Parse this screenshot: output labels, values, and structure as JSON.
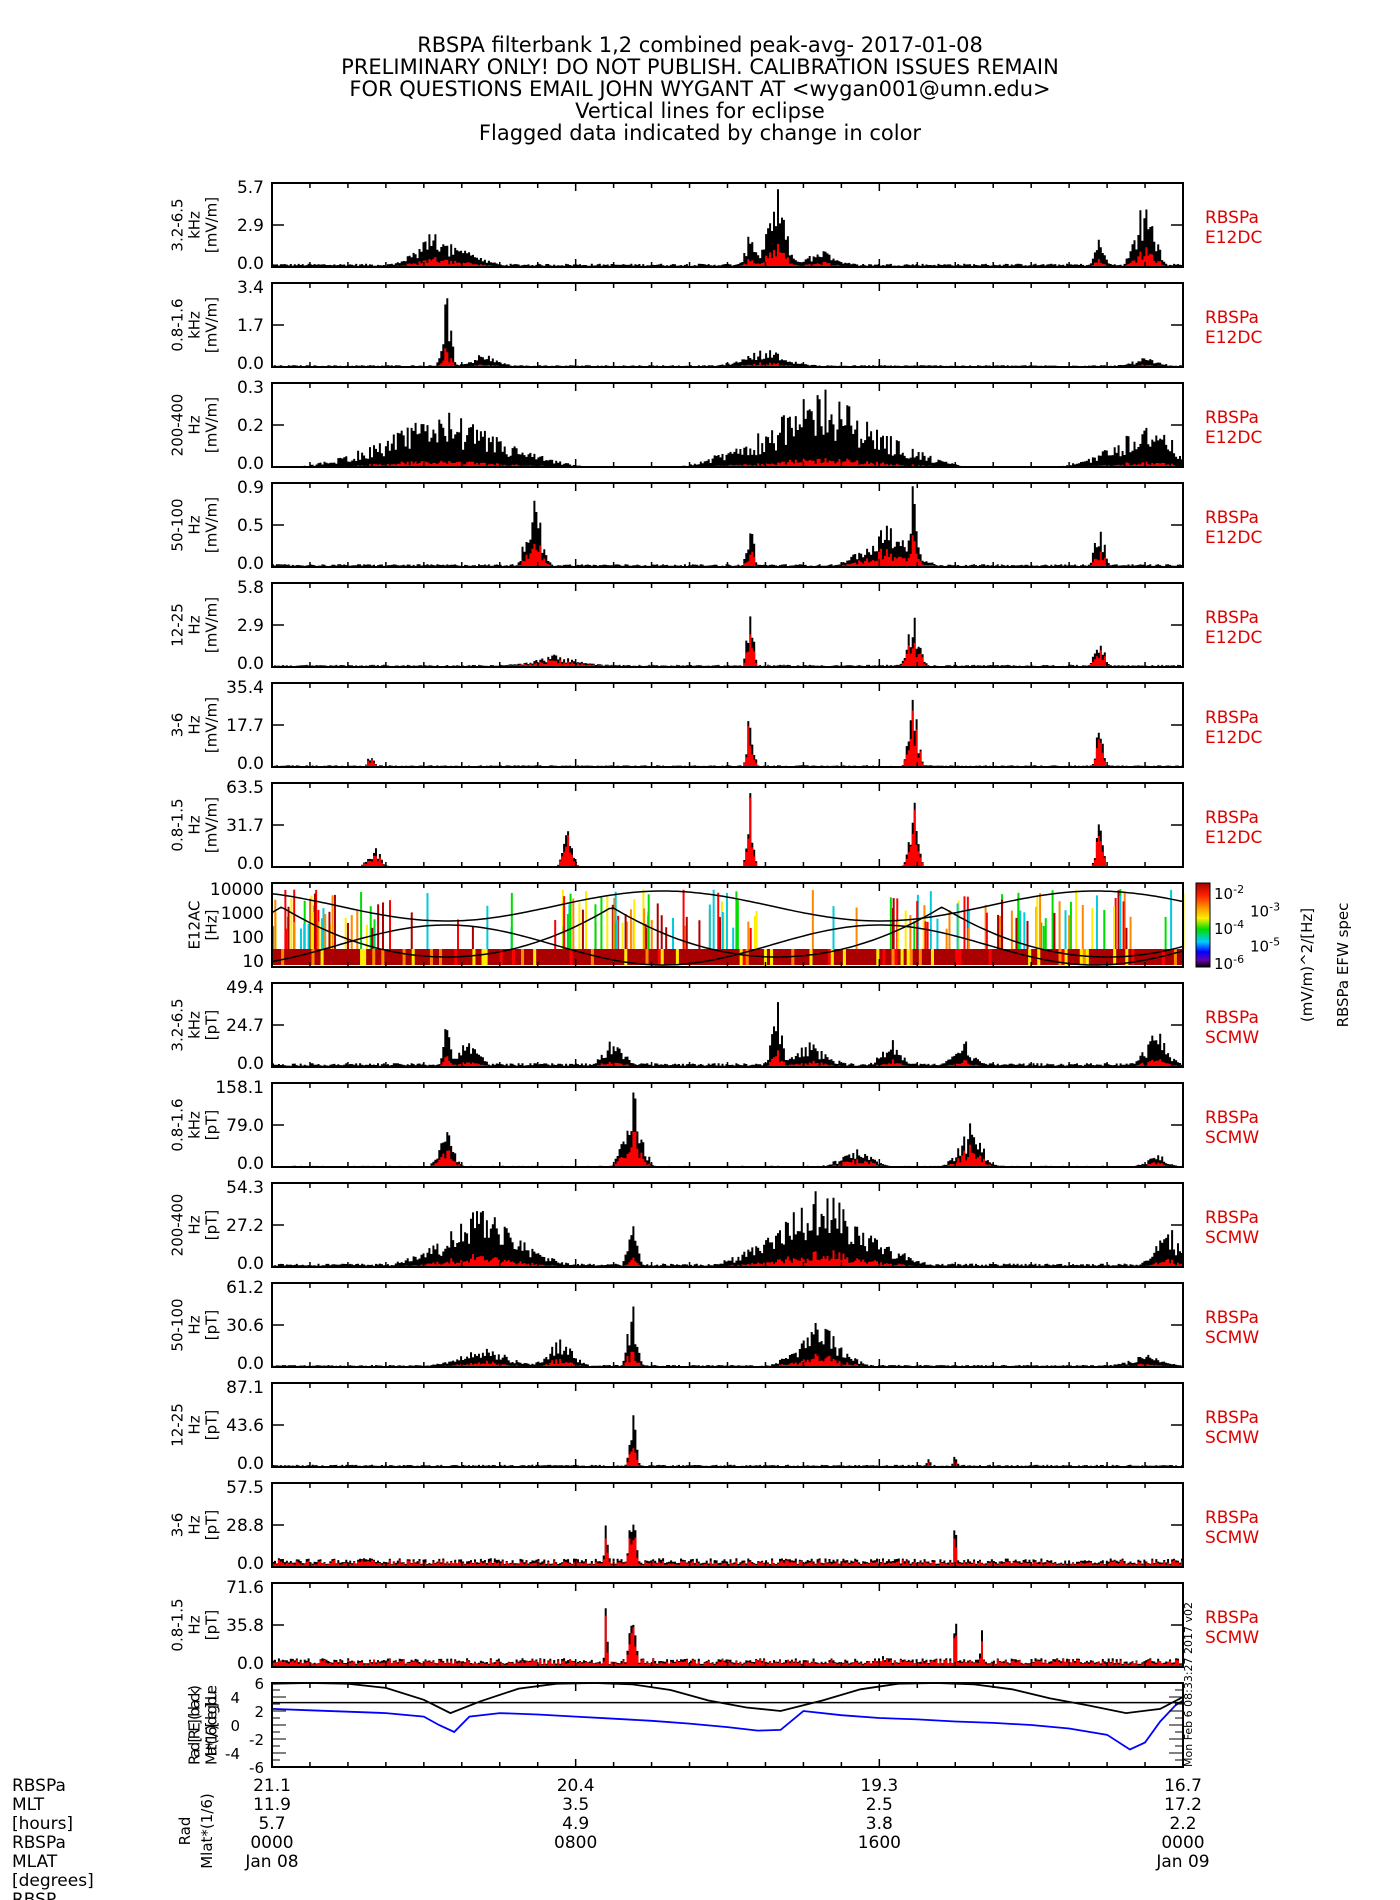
{
  "title_lines": [
    "RBSPA filterbank 1,2 combined peak-avg- 2017-01-08",
    "PRELIMINARY ONLY! DO NOT PUBLISH. CALIBRATION ISSUES REMAIN",
    "FOR QUESTIONS EMAIL JOHN WYGANT AT <wygan001@umn.edu>",
    "Vertical lines for eclipse",
    "Flagged data indicated by change in color"
  ],
  "colors": {
    "peak": "#000000",
    "avg": "#ff0000",
    "side_label": "#ff0000",
    "mlat": "#0000ff",
    "rad": "#000000"
  },
  "chart_data": {
    "type": "line",
    "title": "RBSPA filterbank 1,2 combined peak-avg- 2017-01-08",
    "x_range_hours": [
      0,
      24
    ],
    "x_major_ticks_hours": [
      0,
      8,
      16,
      24
    ],
    "panels": [
      {
        "id": "e12dc-3.2-6.5khz",
        "ylabel": [
          "3.2-6.5",
          "kHz",
          "[mV/m]"
        ],
        "yticks": [
          "0.0",
          "2.9",
          "5.7"
        ],
        "ylim": [
          0,
          5.7
        ],
        "side": [
          "RBSPa",
          "E12DC"
        ],
        "bursts": [
          {
            "t": 4.3,
            "peak": 2.6,
            "w": 1.2
          },
          {
            "t": 5.3,
            "peak": 1.0,
            "w": 0.8
          },
          {
            "t": 12.6,
            "peak": 2.8,
            "w": 0.3
          },
          {
            "t": 13.3,
            "peak": 5.7,
            "w": 0.6
          },
          {
            "t": 14.5,
            "peak": 1.1,
            "w": 1.0
          },
          {
            "t": 21.8,
            "peak": 2.2,
            "w": 0.3
          },
          {
            "t": 23.0,
            "peak": 5.7,
            "w": 0.6
          }
        ],
        "baseline": 0.15,
        "avg_ratio": 0.35
      },
      {
        "id": "e12dc-0.8-1.6khz",
        "ylabel": [
          "0.8-1.6",
          "kHz",
          "[mV/m]"
        ],
        "yticks": [
          "0.0",
          "1.7",
          "3.4"
        ],
        "ylim": [
          0,
          3.4
        ],
        "side": [
          "RBSPa",
          "E12DC"
        ],
        "bursts": [
          {
            "t": 4.6,
            "peak": 3.4,
            "w": 0.3
          },
          {
            "t": 5.6,
            "peak": 0.6,
            "w": 0.8
          },
          {
            "t": 13.0,
            "peak": 0.8,
            "w": 1.4
          },
          {
            "t": 23.0,
            "peak": 0.4,
            "w": 0.8
          }
        ],
        "baseline": 0.05,
        "avg_ratio": 0.3
      },
      {
        "id": "e12dc-200-400hz",
        "ylabel": [
          "200-400",
          "Hz",
          "[mV/m]"
        ],
        "yticks": [
          "0.0",
          "0.2",
          "0.3"
        ],
        "ylim": [
          0,
          0.3
        ],
        "side": [
          "RBSPa",
          "E12DC"
        ],
        "bursts": [
          {
            "t": 4.5,
            "peak": 0.22,
            "w": 4.0
          },
          {
            "t": 14.5,
            "peak": 0.3,
            "w": 4.0
          },
          {
            "t": 23.0,
            "peak": 0.17,
            "w": 2.4
          }
        ],
        "baseline": 0.0,
        "avg_ratio": 0.15
      },
      {
        "id": "e12dc-50-100hz",
        "ylabel": [
          "50-100",
          "Hz",
          "[mV/m]"
        ],
        "yticks": [
          "0.0",
          "0.5",
          "0.9"
        ],
        "ylim": [
          0,
          0.9
        ],
        "side": [
          "RBSPa",
          "E12DC"
        ],
        "bursts": [
          {
            "t": 6.9,
            "peak": 0.9,
            "w": 0.5
          },
          {
            "t": 12.6,
            "peak": 0.75,
            "w": 0.2
          },
          {
            "t": 16.2,
            "peak": 0.55,
            "w": 1.4
          },
          {
            "t": 16.9,
            "peak": 0.9,
            "w": 0.2
          },
          {
            "t": 21.8,
            "peak": 0.6,
            "w": 0.3
          }
        ],
        "baseline": 0.02,
        "avg_ratio": 0.5
      },
      {
        "id": "e12dc-12-25hz",
        "ylabel": [
          "12-25",
          "Hz",
          "[mV/m]"
        ],
        "yticks": [
          "0.0",
          "2.9",
          "5.8"
        ],
        "ylim": [
          0,
          5.8
        ],
        "side": [
          "RBSPa",
          "E12DC"
        ],
        "bursts": [
          {
            "t": 12.6,
            "peak": 5.8,
            "w": 0.2
          },
          {
            "t": 16.9,
            "peak": 4.2,
            "w": 0.4
          },
          {
            "t": 21.8,
            "peak": 2.4,
            "w": 0.3
          },
          {
            "t": 7.5,
            "peak": 0.8,
            "w": 1.5
          }
        ],
        "baseline": 0.1,
        "avg_ratio": 0.8
      },
      {
        "id": "e12dc-3-6hz",
        "ylabel": [
          "3-6",
          "Hz",
          "[mV/m]"
        ],
        "yticks": [
          "0.0",
          "17.7",
          "35.4"
        ],
        "ylim": [
          0,
          35.4
        ],
        "side": [
          "RBSPa",
          "E12DC"
        ],
        "bursts": [
          {
            "t": 12.6,
            "peak": 35.4,
            "w": 0.2
          },
          {
            "t": 16.9,
            "peak": 35.4,
            "w": 0.3
          },
          {
            "t": 21.8,
            "peak": 25.0,
            "w": 0.2
          },
          {
            "t": 2.6,
            "peak": 7.0,
            "w": 0.2
          }
        ],
        "baseline": 0.5,
        "avg_ratio": 0.9
      },
      {
        "id": "e12dc-0.8-1.5hz",
        "ylabel": [
          "0.8-1.5",
          "Hz",
          "[mV/m]"
        ],
        "yticks": [
          "0.0",
          "31.7",
          "63.5"
        ],
        "ylim": [
          0,
          63.5
        ],
        "side": [
          "RBSPa",
          "E12DC"
        ],
        "bursts": [
          {
            "t": 2.7,
            "peak": 20.0,
            "w": 0.4
          },
          {
            "t": 7.8,
            "peak": 40.0,
            "w": 0.3
          },
          {
            "t": 12.6,
            "peak": 63.5,
            "w": 0.2
          },
          {
            "t": 16.9,
            "peak": 63.5,
            "w": 0.3
          },
          {
            "t": 21.8,
            "peak": 63.5,
            "w": 0.2
          }
        ],
        "baseline": 0.5,
        "avg_ratio": 0.95
      },
      {
        "id": "e12ac-spectrogram",
        "type": "spectrogram",
        "ylabel": [
          "E12AC",
          "[Hz]"
        ],
        "yticks": [
          "10",
          "100",
          "1000",
          "10000"
        ],
        "ylim": [
          10,
          10000
        ],
        "side": [],
        "colorbar": {
          "ticks": [
            "10^-2",
            "10^-3",
            "10^-4",
            "10^-5",
            "10^-6"
          ],
          "label": "(mV/m)^2/[Hz]",
          "title": "RBSPa EFW spec"
        }
      },
      {
        "id": "scmw-3.2-6.5khz",
        "ylabel": [
          "3.2-6.5",
          "kHz",
          "[pT]"
        ],
        "yticks": [
          "0.0",
          "24.7",
          "49.4"
        ],
        "ylim": [
          0,
          49.4
        ],
        "side": [
          "RBSPa",
          "SCMW"
        ],
        "bursts": [
          {
            "t": 4.6,
            "peak": 49.4,
            "w": 0.2
          },
          {
            "t": 5.2,
            "peak": 20.0,
            "w": 0.6
          },
          {
            "t": 9.0,
            "peak": 18.0,
            "w": 0.6
          },
          {
            "t": 13.3,
            "peak": 49.4,
            "w": 0.3
          },
          {
            "t": 14.2,
            "peak": 15.0,
            "w": 1.0
          },
          {
            "t": 16.3,
            "peak": 17.0,
            "w": 0.6
          },
          {
            "t": 18.2,
            "peak": 18.0,
            "w": 0.6
          },
          {
            "t": 23.3,
            "peak": 24.0,
            "w": 0.7
          }
        ],
        "baseline": 1.5,
        "avg_ratio": 0.3
      },
      {
        "id": "scmw-0.8-1.6khz",
        "ylabel": [
          "0.8-1.6",
          "kHz",
          "[pT]"
        ],
        "yticks": [
          "0.0",
          "79.0",
          "158.1"
        ],
        "ylim": [
          0,
          158.1
        ],
        "side": [
          "RBSPa",
          "SCMW"
        ],
        "bursts": [
          {
            "t": 4.6,
            "peak": 75.0,
            "w": 0.5
          },
          {
            "t": 9.5,
            "peak": 158.1,
            "w": 0.6
          },
          {
            "t": 15.4,
            "peak": 40.0,
            "w": 1.0
          },
          {
            "t": 18.4,
            "peak": 85.0,
            "w": 0.8
          },
          {
            "t": 23.3,
            "peak": 30.0,
            "w": 0.6
          }
        ],
        "baseline": 1.5,
        "avg_ratio": 0.55
      },
      {
        "id": "scmw-200-400hz",
        "ylabel": [
          "200-400",
          "Hz",
          "[pT]"
        ],
        "yticks": [
          "0.0",
          "27.2",
          "54.3"
        ],
        "ylim": [
          0,
          54.3
        ],
        "side": [
          "RBSPa",
          "SCMW"
        ],
        "bursts": [
          {
            "t": 5.5,
            "peak": 40.0,
            "w": 2.5
          },
          {
            "t": 9.5,
            "peak": 36.0,
            "w": 0.3
          },
          {
            "t": 14.5,
            "peak": 54.3,
            "w": 3.0
          },
          {
            "t": 23.6,
            "peak": 28.0,
            "w": 0.8
          }
        ],
        "baseline": 1.5,
        "avg_ratio": 0.25
      },
      {
        "id": "scmw-50-100hz",
        "ylabel": [
          "50-100",
          "Hz",
          "[pT]"
        ],
        "yticks": [
          "0.0",
          "30.6",
          "61.2"
        ],
        "ylim": [
          0,
          61.2
        ],
        "side": [
          "RBSPa",
          "SCMW"
        ],
        "bursts": [
          {
            "t": 5.6,
            "peak": 15.0,
            "w": 1.6
          },
          {
            "t": 7.6,
            "peak": 25.0,
            "w": 0.8
          },
          {
            "t": 9.5,
            "peak": 61.2,
            "w": 0.3
          },
          {
            "t": 14.4,
            "peak": 38.0,
            "w": 1.4
          },
          {
            "t": 23.0,
            "peak": 10.0,
            "w": 1.0
          }
        ],
        "baseline": 1.0,
        "avg_ratio": 0.35
      },
      {
        "id": "scmw-12-25hz",
        "ylabel": [
          "12-25",
          "Hz",
          "[pT]"
        ],
        "yticks": [
          "0.0",
          "43.6",
          "87.1"
        ],
        "ylim": [
          0,
          87.1
        ],
        "side": [
          "RBSPa",
          "SCMW"
        ],
        "bursts": [
          {
            "t": 9.5,
            "peak": 87.1,
            "w": 0.2
          },
          {
            "t": 17.3,
            "peak": 14.0,
            "w": 0.1
          },
          {
            "t": 18.0,
            "peak": 20.0,
            "w": 0.1
          }
        ],
        "baseline": 1.5,
        "avg_ratio": 0.6
      },
      {
        "id": "scmw-3-6hz",
        "ylabel": [
          "3-6",
          "Hz",
          "[pT]"
        ],
        "yticks": [
          "0.0",
          "28.8",
          "57.5"
        ],
        "ylim": [
          0,
          57.5
        ],
        "side": [
          "RBSPa",
          "SCMW"
        ],
        "bursts": [
          {
            "t": 8.8,
            "peak": 57.5,
            "w": 0.08
          },
          {
            "t": 9.5,
            "peak": 57.5,
            "w": 0.2
          },
          {
            "t": 18.0,
            "peak": 57.5,
            "w": 0.08
          }
        ],
        "baseline": 4.0,
        "avg_ratio": 0.85
      },
      {
        "id": "scmw-0.8-1.5hz",
        "ylabel": [
          "0.8-1.5",
          "Hz",
          "[pT]"
        ],
        "yticks": [
          "0.0",
          "35.8",
          "71.6"
        ],
        "ylim": [
          0,
          71.6
        ],
        "side": [
          "RBSPa",
          "SCMW"
        ],
        "bursts": [
          {
            "t": 8.8,
            "peak": 71.6,
            "w": 0.08
          },
          {
            "t": 9.5,
            "peak": 71.6,
            "w": 0.2
          },
          {
            "t": 18.0,
            "peak": 71.6,
            "w": 0.08
          },
          {
            "t": 18.7,
            "peak": 32.0,
            "w": 0.08
          },
          {
            "t": 16.1,
            "peak": 10.0,
            "w": 0.1
          }
        ],
        "baseline": 5.0,
        "avg_ratio": 0.95
      },
      {
        "id": "ephemeris",
        "type": "line",
        "ylabel": [
          "Rad [RE] (black)",
          "Mlat*(1/6) [deg] blue"
        ],
        "yticks": [
          "-6",
          "-4",
          "-2",
          "0",
          "2",
          "4",
          "6"
        ],
        "ylim": [
          -6,
          6
        ],
        "side": [],
        "series": [
          {
            "name": "Rad [RE]",
            "color": "#000000",
            "x": [
              0,
              1,
              2,
              3,
              4,
              4.7,
              5.5,
              6.5,
              7.5,
              8.5,
              9.5,
              10.5,
              11.5,
              12.5,
              13.4,
              14.5,
              15.5,
              16.5,
              17.5,
              18.5,
              19.5,
              20.5,
              21.5,
              22.5,
              23.4,
              24
            ],
            "y": [
              5.9,
              6.0,
              5.9,
              5.3,
              3.6,
              1.7,
              3.4,
              5.2,
              5.9,
              6.0,
              5.8,
              5.0,
              3.5,
              2.5,
              2.0,
              3.5,
              5.1,
              5.9,
              6.0,
              5.8,
              5.1,
              3.8,
              2.8,
              1.7,
              2.3,
              4.0
            ]
          },
          {
            "name": "Mlat*(1/6) [deg]",
            "color": "#0000ff",
            "x": [
              0,
              1,
              2,
              3,
              4,
              4.4,
              4.8,
              5.2,
              6,
              7,
              8,
              9,
              10,
              11,
              12,
              12.8,
              13.4,
              14.0,
              15,
              16,
              17,
              18,
              19,
              20,
              21,
              22,
              22.6,
              23.0,
              23.4,
              23.8,
              24
            ],
            "y": [
              2.3,
              2.1,
              1.9,
              1.7,
              1.2,
              0.0,
              -1.0,
              1.2,
              1.7,
              1.5,
              1.2,
              0.9,
              0.6,
              0.2,
              -0.3,
              -0.8,
              -0.7,
              2.0,
              1.4,
              1.0,
              0.8,
              0.5,
              0.3,
              0.0,
              -0.5,
              -1.4,
              -3.5,
              -2.5,
              0.5,
              2.8,
              3.5
            ]
          }
        ],
        "reference_line": {
          "name": "Rad=?",
          "value": 3.2
        }
      }
    ],
    "x_annotation_rows": [
      {
        "label": "RBSPa Rad [RE]",
        "values": [
          "21.1",
          "20.4",
          "19.3",
          "16.7"
        ]
      },
      {
        "label": "RBSPa MLT [hours]",
        "values": [
          "11.9",
          "3.5",
          "2.5",
          "17.2"
        ]
      },
      {
        "label": "RBSPa MLAT [degrees]",
        "values": [
          "5.7",
          "4.9",
          "3.8",
          "2.2"
        ]
      },
      {
        "label": "time",
        "values": [
          "0000",
          "0800",
          "1600",
          "0000"
        ]
      },
      {
        "label": "date",
        "values": [
          "Jan 08",
          "",
          "",
          "Jan 09"
        ]
      }
    ],
    "left_row_labels": [
      "RBSPa",
      "MLT",
      "[hours]",
      "RBSPa",
      "MLAT",
      "[degrees]",
      "RBSP"
    ],
    "side_stamp": "Mon Feb  6 08:33:27 2017 v02"
  }
}
